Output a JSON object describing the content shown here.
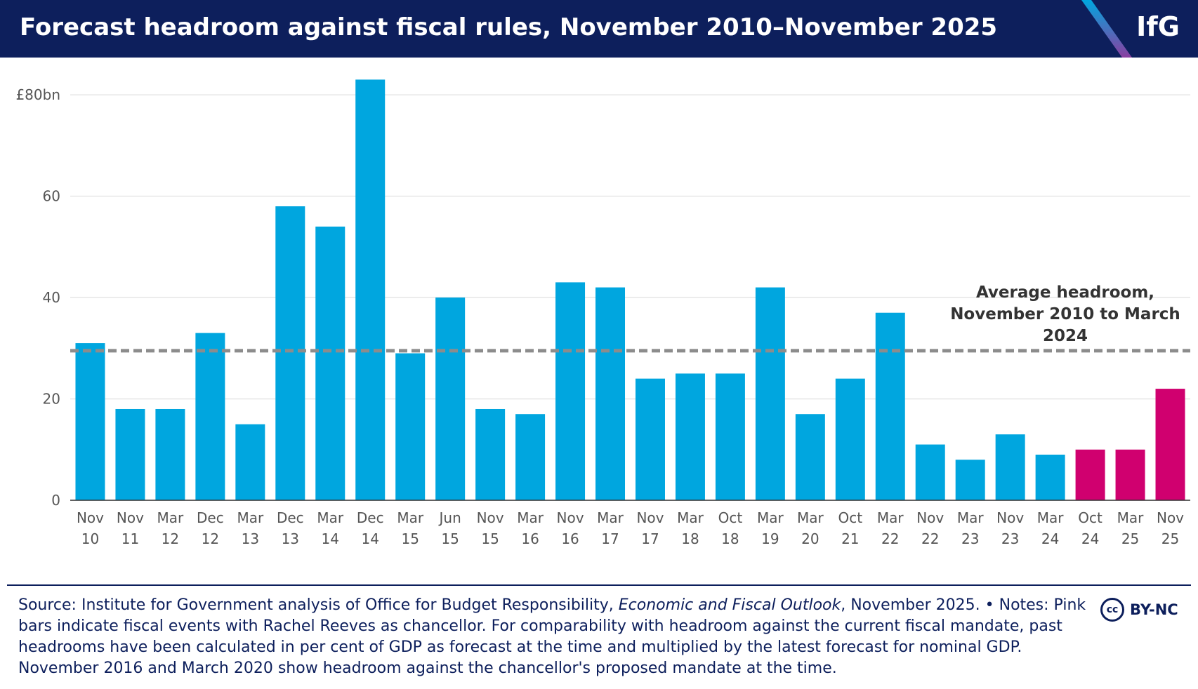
{
  "header": {
    "title": "Forecast headroom against fiscal rules, November 2010–November 2025",
    "logo": "IfG"
  },
  "chart_data": {
    "type": "bar",
    "categories": [
      "Nov 10",
      "Nov 11",
      "Mar 12",
      "Dec 12",
      "Mar 13",
      "Dec 13",
      "Mar 14",
      "Dec 14",
      "Mar 15",
      "Jun 15",
      "Nov 15",
      "Mar 16",
      "Nov 16",
      "Mar 17",
      "Nov 17",
      "Mar 18",
      "Oct 18",
      "Mar 19",
      "Mar 20",
      "Oct 21",
      "Mar 22",
      "Nov 22",
      "Mar 23",
      "Nov 23",
      "Mar 24",
      "Oct 24",
      "Mar 25",
      "Nov 25"
    ],
    "values": [
      31,
      18,
      18,
      33,
      15,
      58,
      54,
      83,
      29,
      40,
      18,
      17,
      43,
      42,
      24,
      25,
      25,
      42,
      17,
      24,
      37,
      11,
      8,
      13,
      9,
      10,
      10,
      22
    ],
    "colors": [
      "#00a6df",
      "#00a6df",
      "#00a6df",
      "#00a6df",
      "#00a6df",
      "#00a6df",
      "#00a6df",
      "#00a6df",
      "#00a6df",
      "#00a6df",
      "#00a6df",
      "#00a6df",
      "#00a6df",
      "#00a6df",
      "#00a6df",
      "#00a6df",
      "#00a6df",
      "#00a6df",
      "#00a6df",
      "#00a6df",
      "#00a6df",
      "#00a6df",
      "#00a6df",
      "#00a6df",
      "#00a6df",
      "#d0006f",
      "#d0006f",
      "#d0006f"
    ],
    "ylim": [
      0,
      85
    ],
    "yticks": [
      0,
      20,
      40,
      60,
      {
        "value": 80,
        "label": "£80bn"
      }
    ],
    "grid": true,
    "reference_line": {
      "value": 29.5,
      "label": "Average headroom, November 2010 to March 2024",
      "color": "#8c8c8c"
    }
  },
  "footer": {
    "source_start": "Source: Institute for Government analysis of Office for Budget Responsibility, ",
    "source_italic": "Economic and Fiscal Outlook",
    "source_end": ", November 2025. • Notes: Pink bars indicate fiscal events with Rachel Reeves as chancellor. For comparability with headroom against the current fiscal mandate, past headrooms have been calculated in per cent of GDP as forecast at the time and multiplied by the latest forecast for nominal GDP. November 2016 and March 2020 show headroom against the chancellor's proposed mandate at the time.",
    "license": "BY-NC"
  }
}
